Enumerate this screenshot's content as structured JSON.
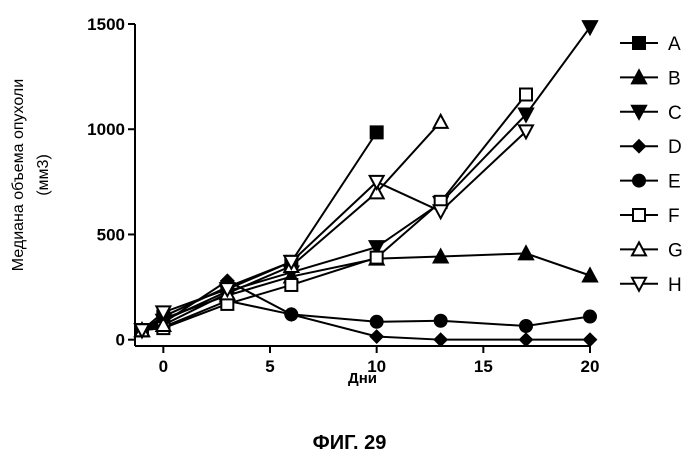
{
  "chart_data": {
    "type": "line",
    "xlabel": "Дни",
    "ylabel_line1": "Медиана объема опухоли",
    "ylabel_line2": "(мм3)",
    "xlim": [
      -1,
      20
    ],
    "ylim": [
      -30,
      1500
    ],
    "xticks": [
      0,
      5,
      10,
      15,
      20
    ],
    "yticks": [
      0,
      500,
      1000,
      1500
    ],
    "grid": false,
    "legend_position": "right",
    "series": [
      {
        "name": "A",
        "marker": "square-filled",
        "x": [
          -1,
          0,
          3,
          6,
          10
        ],
        "y": [
          45,
          110,
          250,
          370,
          985
        ]
      },
      {
        "name": "B",
        "marker": "triangle-up-filled",
        "x": [
          -1,
          0,
          3,
          6,
          10,
          13,
          17,
          20
        ],
        "y": [
          45,
          100,
          210,
          300,
          385,
          395,
          410,
          305
        ]
      },
      {
        "name": "C",
        "marker": "triangle-down-filled",
        "x": [
          -1,
          0,
          3,
          6,
          10,
          13,
          17,
          20
        ],
        "y": [
          45,
          90,
          230,
          320,
          440,
          650,
          1070,
          1485
        ]
      },
      {
        "name": "D",
        "marker": "diamond-filled",
        "x": [
          -1,
          0,
          3,
          6,
          10,
          13,
          17,
          20
        ],
        "y": [
          45,
          80,
          280,
          120,
          15,
          0,
          0,
          0
        ]
      },
      {
        "name": "E",
        "marker": "circle-filled",
        "x": [
          -1,
          0,
          3,
          6,
          10,
          13,
          17,
          20
        ],
        "y": [
          45,
          60,
          185,
          120,
          85,
          90,
          65,
          110
        ]
      },
      {
        "name": "F",
        "marker": "square-open",
        "x": [
          -1,
          0,
          3,
          6,
          10,
          13,
          17
        ],
        "y": [
          45,
          55,
          170,
          260,
          390,
          655,
          1165
        ]
      },
      {
        "name": "G",
        "marker": "triangle-up-open",
        "x": [
          -1,
          0,
          3,
          6,
          10,
          13
        ],
        "y": [
          45,
          70,
          220,
          350,
          700,
          1035
        ]
      },
      {
        "name": "H",
        "marker": "triangle-down-open",
        "x": [
          -1,
          0,
          3,
          6,
          10,
          13,
          17
        ],
        "y": [
          45,
          130,
          240,
          370,
          750,
          610,
          990
        ]
      }
    ]
  },
  "caption": "ФИГ. 29"
}
